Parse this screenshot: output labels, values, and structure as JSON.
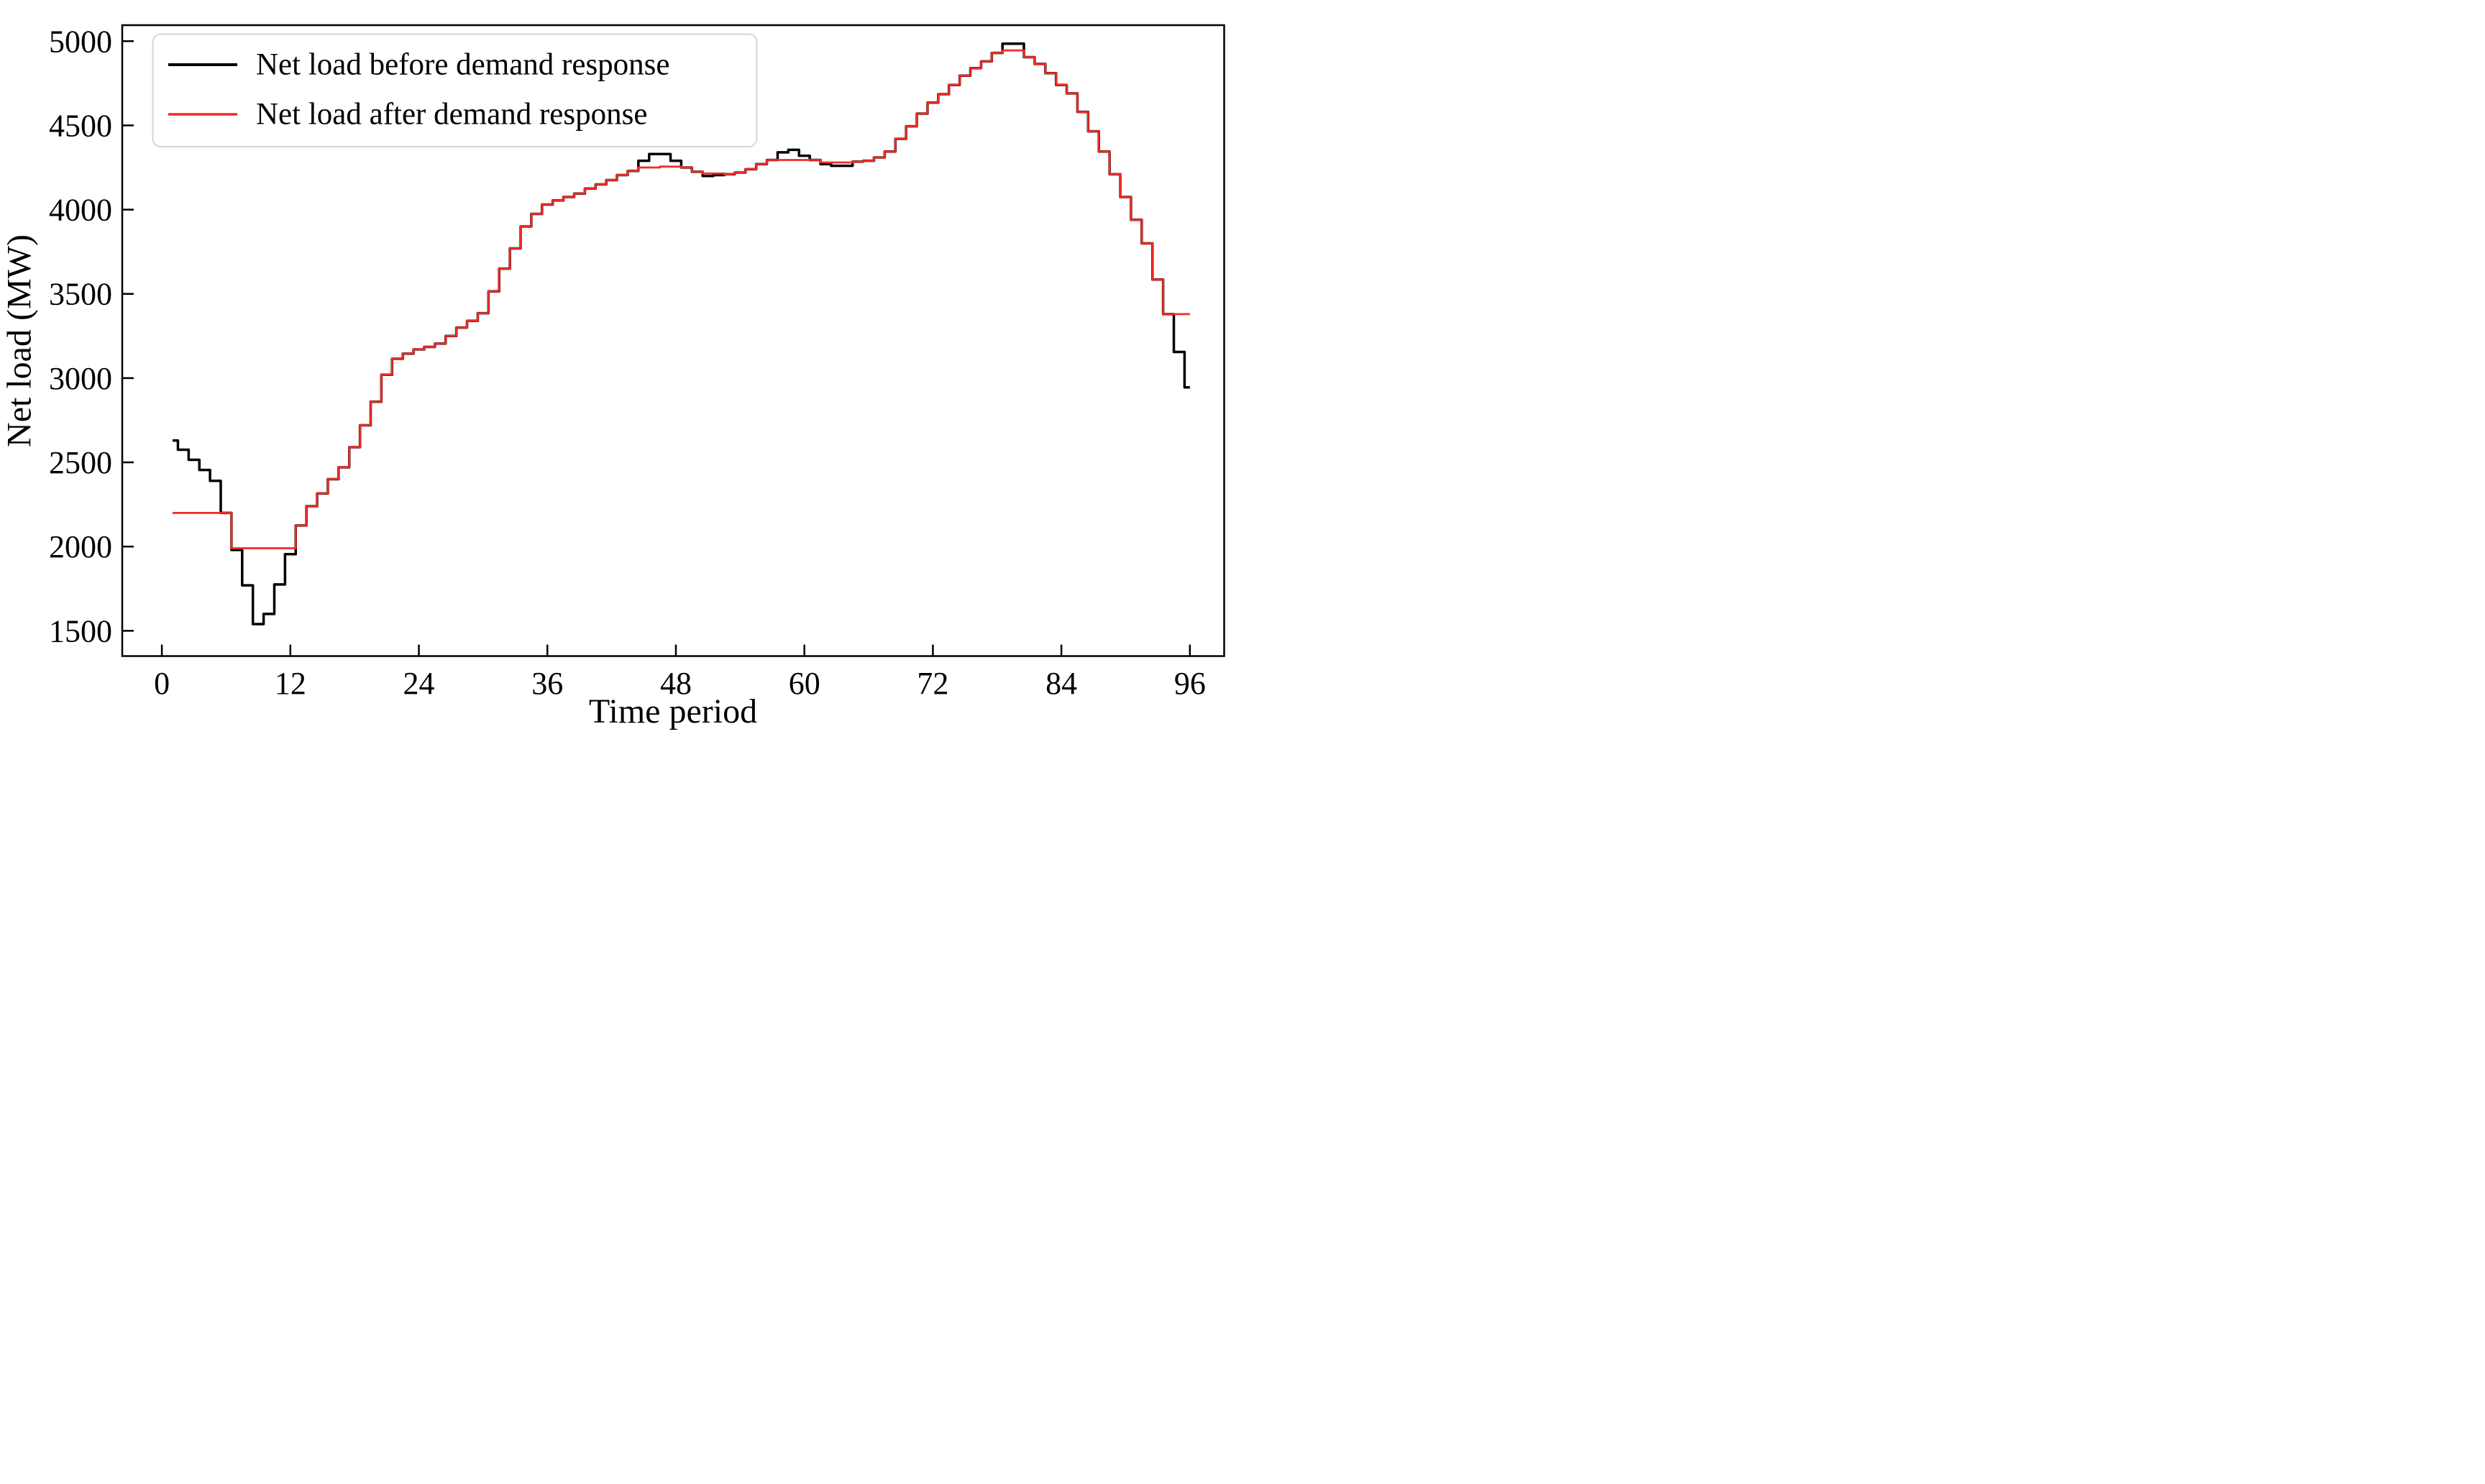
{
  "chart_data": {
    "type": "line",
    "subtype": "step-mid",
    "title": "",
    "xlabel": "Time period",
    "ylabel": "Net load (MW)",
    "x_start": 1,
    "x_end": 96,
    "x_ticks": [
      0,
      12,
      24,
      36,
      48,
      60,
      72,
      84,
      96
    ],
    "y_ticks": [
      1500,
      2000,
      2500,
      3000,
      3500,
      4000,
      4500,
      5000
    ],
    "xlim": [
      -3.7,
      99.2
    ],
    "ylim": [
      1350,
      5095
    ],
    "grid": false,
    "legend_position": "upper left",
    "frame_color": "#000000",
    "background_color": "#ffffff",
    "series": [
      {
        "name": "Net load before demand response",
        "color": "#000000",
        "line_width": 7,
        "values": [
          2630,
          2575,
          2515,
          2455,
          2390,
          2200,
          1980,
          1770,
          1540,
          1600,
          1775,
          1955,
          2125,
          2240,
          2315,
          2400,
          2470,
          2590,
          2720,
          2860,
          3020,
          3115,
          3145,
          3170,
          3185,
          3205,
          3250,
          3300,
          3340,
          3385,
          3515,
          3650,
          3770,
          3900,
          3975,
          4030,
          4055,
          4075,
          4095,
          4125,
          4150,
          4175,
          4205,
          4230,
          4290,
          4330,
          4330,
          4290,
          4250,
          4225,
          4200,
          4205,
          4210,
          4220,
          4240,
          4270,
          4295,
          4340,
          4355,
          4320,
          4295,
          4270,
          4260,
          4260,
          4285,
          4290,
          4310,
          4345,
          4420,
          4495,
          4570,
          4635,
          4685,
          4740,
          4795,
          4840,
          4880,
          4930,
          4985,
          4985,
          4905,
          4865,
          4810,
          4740,
          4690,
          4580,
          4465,
          4345,
          4210,
          4075,
          3940,
          3800,
          3585,
          3380,
          3155,
          2945
        ]
      },
      {
        "name": "Net load after demand response",
        "color": "#f22a26",
        "line_width": 5.5,
        "values": [
          2200,
          2200,
          2200,
          2200,
          2200,
          2200,
          1990,
          1990,
          1990,
          1990,
          1990,
          1990,
          2125,
          2240,
          2315,
          2400,
          2470,
          2590,
          2720,
          2860,
          3020,
          3115,
          3145,
          3170,
          3185,
          3205,
          3250,
          3300,
          3340,
          3385,
          3515,
          3650,
          3770,
          3900,
          3975,
          4030,
          4055,
          4075,
          4095,
          4125,
          4150,
          4175,
          4205,
          4230,
          4250,
          4250,
          4255,
          4255,
          4250,
          4225,
          4215,
          4215,
          4210,
          4220,
          4240,
          4270,
          4295,
          4295,
          4295,
          4295,
          4295,
          4280,
          4280,
          4280,
          4285,
          4290,
          4310,
          4345,
          4420,
          4495,
          4570,
          4635,
          4685,
          4740,
          4795,
          4840,
          4880,
          4930,
          4945,
          4945,
          4905,
          4865,
          4810,
          4740,
          4690,
          4580,
          4465,
          4345,
          4210,
          4075,
          3940,
          3800,
          3585,
          3380,
          3380,
          3380
        ]
      }
    ]
  }
}
